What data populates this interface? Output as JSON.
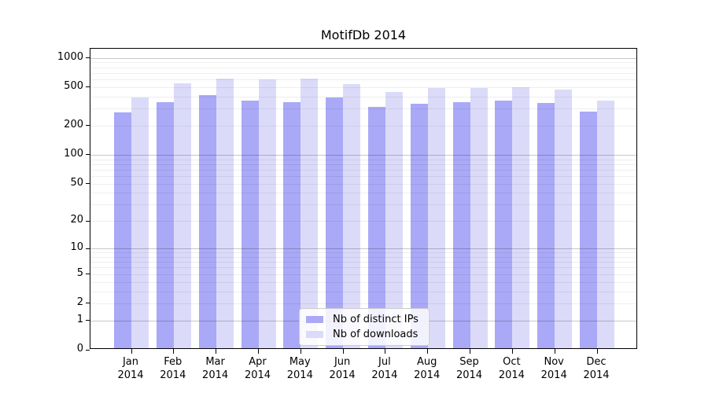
{
  "title": "MotifDb 2014",
  "chart_data": {
    "type": "bar",
    "title": "MotifDb 2014",
    "categories": [
      "Jan 2014",
      "Feb 2014",
      "Mar 2014",
      "Apr 2014",
      "May 2014",
      "Jun 2014",
      "Jul 2014",
      "Aug 2014",
      "Sep 2014",
      "Oct 2014",
      "Nov 2014",
      "Dec 2014"
    ],
    "series": [
      {
        "name": "Nb of distinct IPs",
        "color": "#a9a9f7",
        "values": [
          265,
          340,
          400,
          350,
          340,
          375,
          300,
          325,
          340,
          350,
          330,
          270
        ]
      },
      {
        "name": "Nb of downloads",
        "color": "#dbdbf9",
        "values": [
          375,
          530,
          590,
          575,
          585,
          515,
          430,
          470,
          470,
          480,
          455,
          350
        ]
      }
    ],
    "xlabel": "",
    "ylabel": "",
    "yscale": "log1p",
    "yticks": [
      0,
      1,
      2,
      5,
      10,
      20,
      50,
      100,
      200,
      500,
      1000
    ],
    "ylim": [
      0,
      1240
    ],
    "grid": "horizontal; faint minor lines at 2-9 of each decade, darker lines at 1, 10, 100, 1000",
    "legend_position": "lower center inside plot",
    "colors": {
      "bar_distinct_ips": "#a9a9f7",
      "bar_downloads": "#dbdbf9",
      "grid_major": "rgba(0,0,0,0.22)",
      "grid_minor": "rgba(0,0,0,0.065)",
      "axis_frame": "#000000",
      "background": "#ffffff",
      "legend_border": "#cccccc"
    }
  }
}
